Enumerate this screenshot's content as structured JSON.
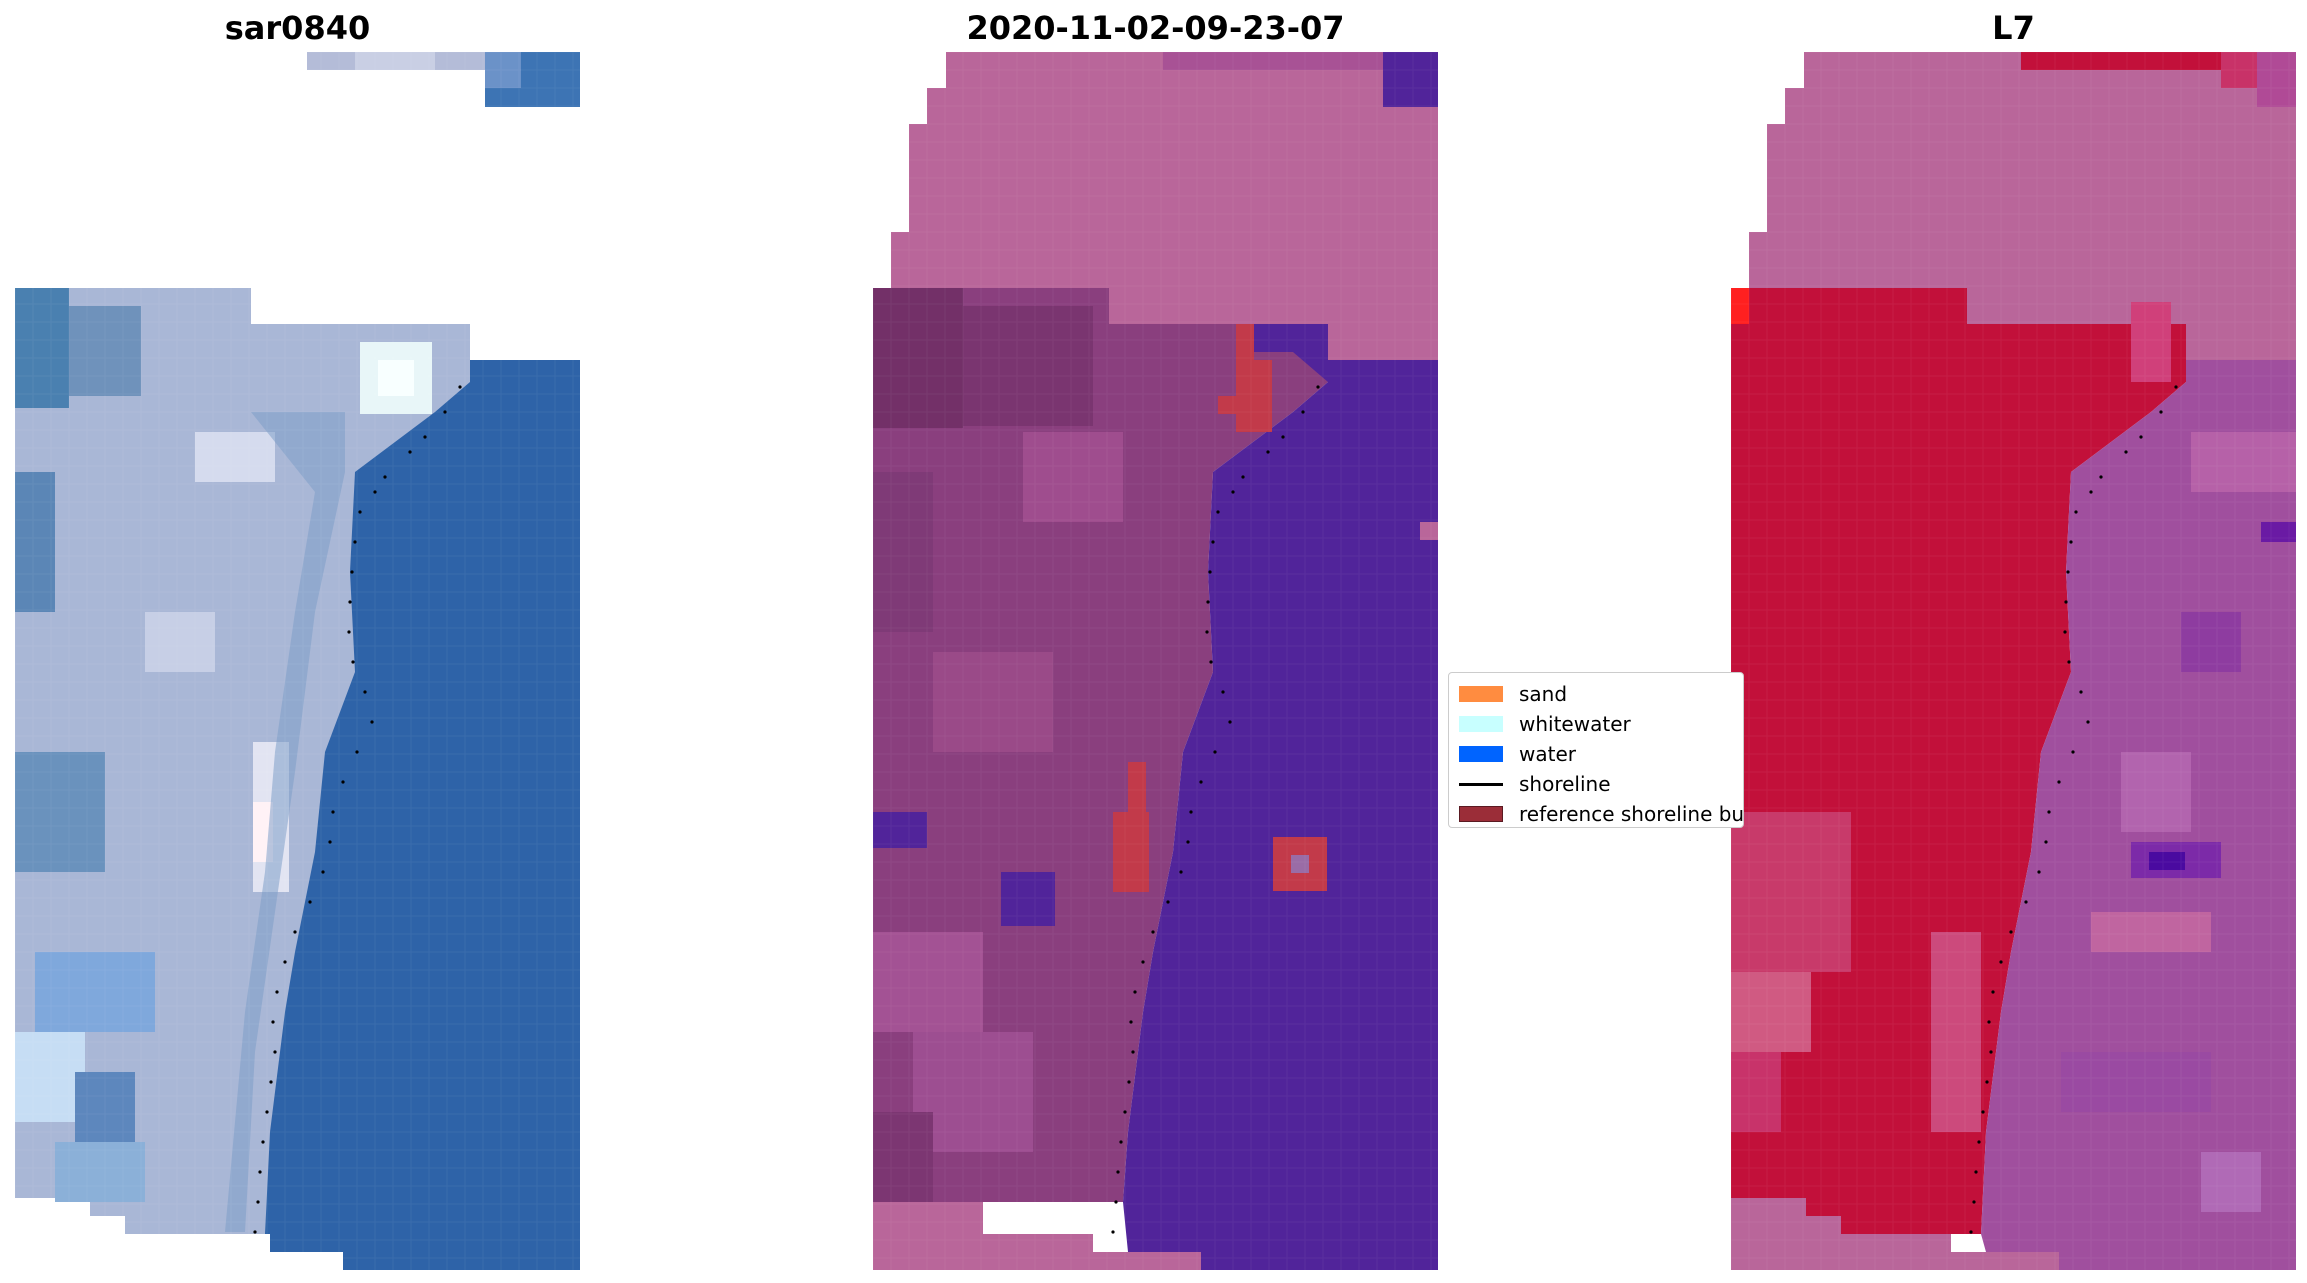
{
  "panels": [
    {
      "title": "sar0840"
    },
    {
      "title": "2020-11-02-09-23-07"
    },
    {
      "title": "L7"
    }
  ],
  "legend": {
    "items": [
      {
        "label": "sand",
        "color": "#ff8c40",
        "kind": "patch"
      },
      {
        "label": "whitewater",
        "color": "#c8ffff",
        "kind": "patch"
      },
      {
        "label": "water",
        "color": "#0064ff",
        "kind": "patch"
      },
      {
        "label": "shoreline",
        "color": "#000000",
        "kind": "line"
      },
      {
        "label": "reference shoreline buffer",
        "color": "#9b2d38",
        "kind": "patch"
      }
    ]
  },
  "colors": {
    "rgb_water": "#2e63a8",
    "rgb_land": "#a9b7d6",
    "class_land": "#8a3f7e",
    "class_water": "#51249a",
    "class_nodata": "#b9669a",
    "mndwi_red": "#c2103a",
    "mndwi_purple": "#a04f9e"
  }
}
